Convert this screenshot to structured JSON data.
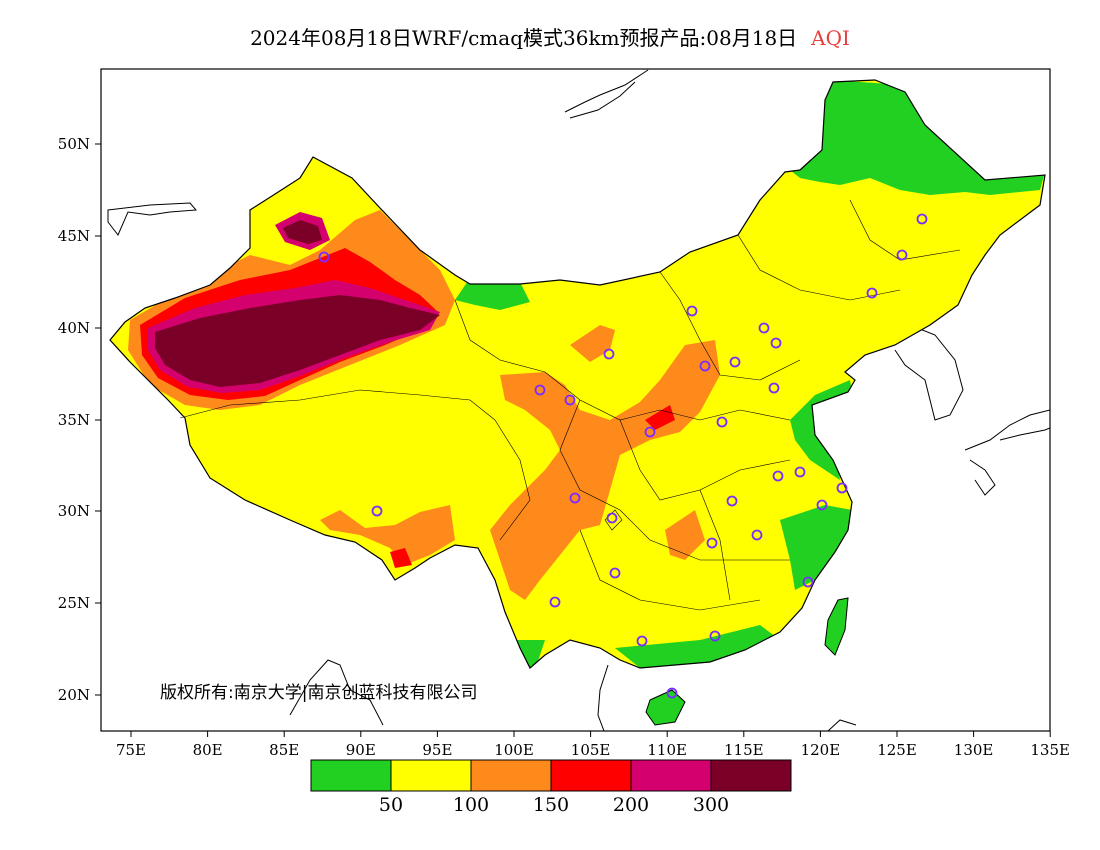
{
  "header": {
    "title": "2024年08月18日WRF/cmaq模式36km预报产品:08月18日",
    "variable": "AQI"
  },
  "copyright": "版权所有:南京大学|南京创蓝科技有限公司",
  "axes": {
    "lon_ticks": [
      "75E",
      "80E",
      "85E",
      "90E",
      "95E",
      "100E",
      "105E",
      "110E",
      "115E",
      "120E",
      "125E",
      "130E",
      "135E"
    ],
    "lat_ticks": [
      "50N",
      "45N",
      "40N",
      "35N",
      "30N",
      "25N",
      "20N"
    ]
  },
  "legend": {
    "colors": [
      "#22d022",
      "#ffff00",
      "#ff8a1c",
      "#ff0000",
      "#d4006e",
      "#7a0028"
    ],
    "labels": [
      "50",
      "100",
      "150",
      "200",
      "300"
    ]
  },
  "colors": {
    "good": "#22d022",
    "moderate": "#ffff00",
    "sensitive": "#ff8a1c",
    "unhealthy": "#ff0000",
    "very_unhealthy": "#d4006e",
    "hazardous": "#7a0028",
    "station_marker": "#7b2cff"
  }
}
